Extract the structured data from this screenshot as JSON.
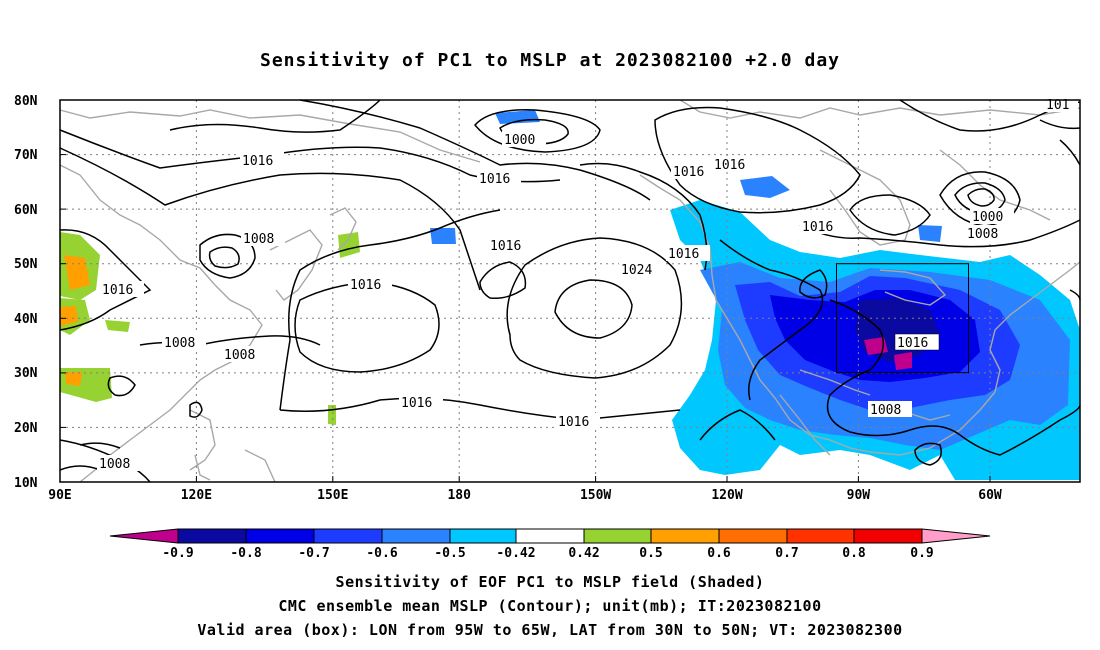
{
  "title": "Sensitivity of PC1 to MSLP at 2023082100 +2.0 day",
  "axes": {
    "lat_labels": [
      "80N",
      "70N",
      "60N",
      "50N",
      "40N",
      "30N",
      "20N",
      "10N"
    ],
    "lon_labels": [
      "90E",
      "120E",
      "150E",
      "180",
      "150W",
      "120W",
      "90W",
      "60W"
    ]
  },
  "contour_labels": [
    "1000",
    "1016",
    "1016",
    "1016",
    "1016",
    "1016",
    "1016",
    "1016",
    "1016",
    "1008",
    "1016",
    "1008",
    "1008",
    "1016",
    "1024",
    "1016",
    "1016",
    "1016",
    "1008",
    "1000",
    "1008",
    "101",
    "1016",
    "1008"
  ],
  "colorbar": {
    "labels": [
      "-0.9",
      "-0.8",
      "-0.7",
      "-0.6",
      "-0.5",
      "-0.42",
      "0.42",
      "0.5",
      "0.6",
      "0.7",
      "0.8",
      "0.9"
    ],
    "colors": [
      "#c0008c",
      "#0a0aa0",
      "#0000e6",
      "#1e3cff",
      "#2a82ff",
      "#00c8ff",
      "#ffffff",
      "#96d232",
      "#ffa000",
      "#ff6e00",
      "#ff3200",
      "#f00000",
      "#ff9ec8"
    ]
  },
  "valid_box": {
    "lon_from": "95W",
    "lon_to": "65W",
    "lat_from": "30N",
    "lat_to": "50N"
  },
  "captions": {
    "line1": "Sensitivity of EOF PC1 to MSLP field (Shaded)",
    "line2": "CMC ensemble mean MSLP (Contour); unit(mb); IT:2023082100",
    "line3": "Valid area (box): LON from 95W to 65W, LAT from 30N to 50N; VT: 2023082300"
  },
  "colors": {
    "contour": "#000000",
    "coastline": "#a8a8a8",
    "grid": "#808080"
  }
}
